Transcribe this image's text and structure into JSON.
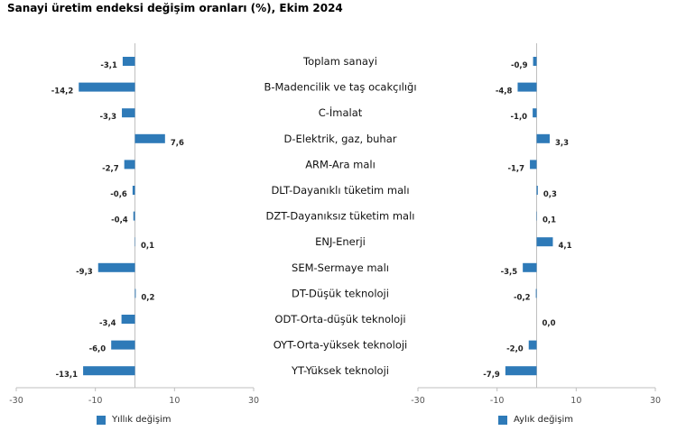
{
  "title": "Sanayi üretim endeksi değişim oranları (%), Ekim 2024",
  "colors": {
    "bar": "#2e7ab8",
    "axis": "#bfbfbf"
  },
  "chart_data": {
    "type": "bar",
    "orientation": "horizontal",
    "categories": [
      "Toplam sanayi",
      "B-Madencilik ve taş ocakçılığı",
      "C-İmalat",
      "D-Elektrik, gaz, buhar",
      "ARM-Ara malı",
      "DLT-Dayanıklı tüketim malı",
      "DZT-Dayanıksız tüketim malı",
      "ENJ-Enerji",
      "SEM-Sermaye malı",
      "DT-Düşük teknoloji",
      "ODT-Orta-düşük teknoloji",
      "OYT-Orta-yüksek teknoloji",
      "YT-Yüksek teknoloji"
    ],
    "series": [
      {
        "name": "Yıllık değişim",
        "values": [
          -3.1,
          -14.2,
          -3.3,
          7.6,
          -2.7,
          -0.6,
          -0.4,
          0.1,
          -9.3,
          0.2,
          -3.4,
          -6.0,
          -13.1
        ],
        "labels": [
          "-3,1",
          "-14,2",
          "-3,3",
          "7,6",
          "-2,7",
          "-0,6",
          "-0,4",
          "0,1",
          "-9,3",
          "0,2",
          "-3,4",
          "-6,0",
          "-13,1"
        ],
        "xlim": [
          -30,
          30
        ],
        "ticks": [
          "-30",
          "-10",
          "10",
          "30"
        ]
      },
      {
        "name": "Aylık değişim",
        "values": [
          -0.9,
          -4.8,
          -1.0,
          3.3,
          -1.7,
          0.3,
          0.1,
          4.1,
          -3.5,
          -0.2,
          0.0,
          -2.0,
          -7.9
        ],
        "labels": [
          "-0,9",
          "-4,8",
          "-1,0",
          "3,3",
          "-1,7",
          "0,3",
          "0,1",
          "4,1",
          "-3,5",
          "-0,2",
          "0,0",
          "-2,0",
          "-7,9"
        ],
        "xlim": [
          -30,
          30
        ],
        "ticks": [
          "-30",
          "-10",
          "10",
          "30"
        ]
      }
    ]
  }
}
